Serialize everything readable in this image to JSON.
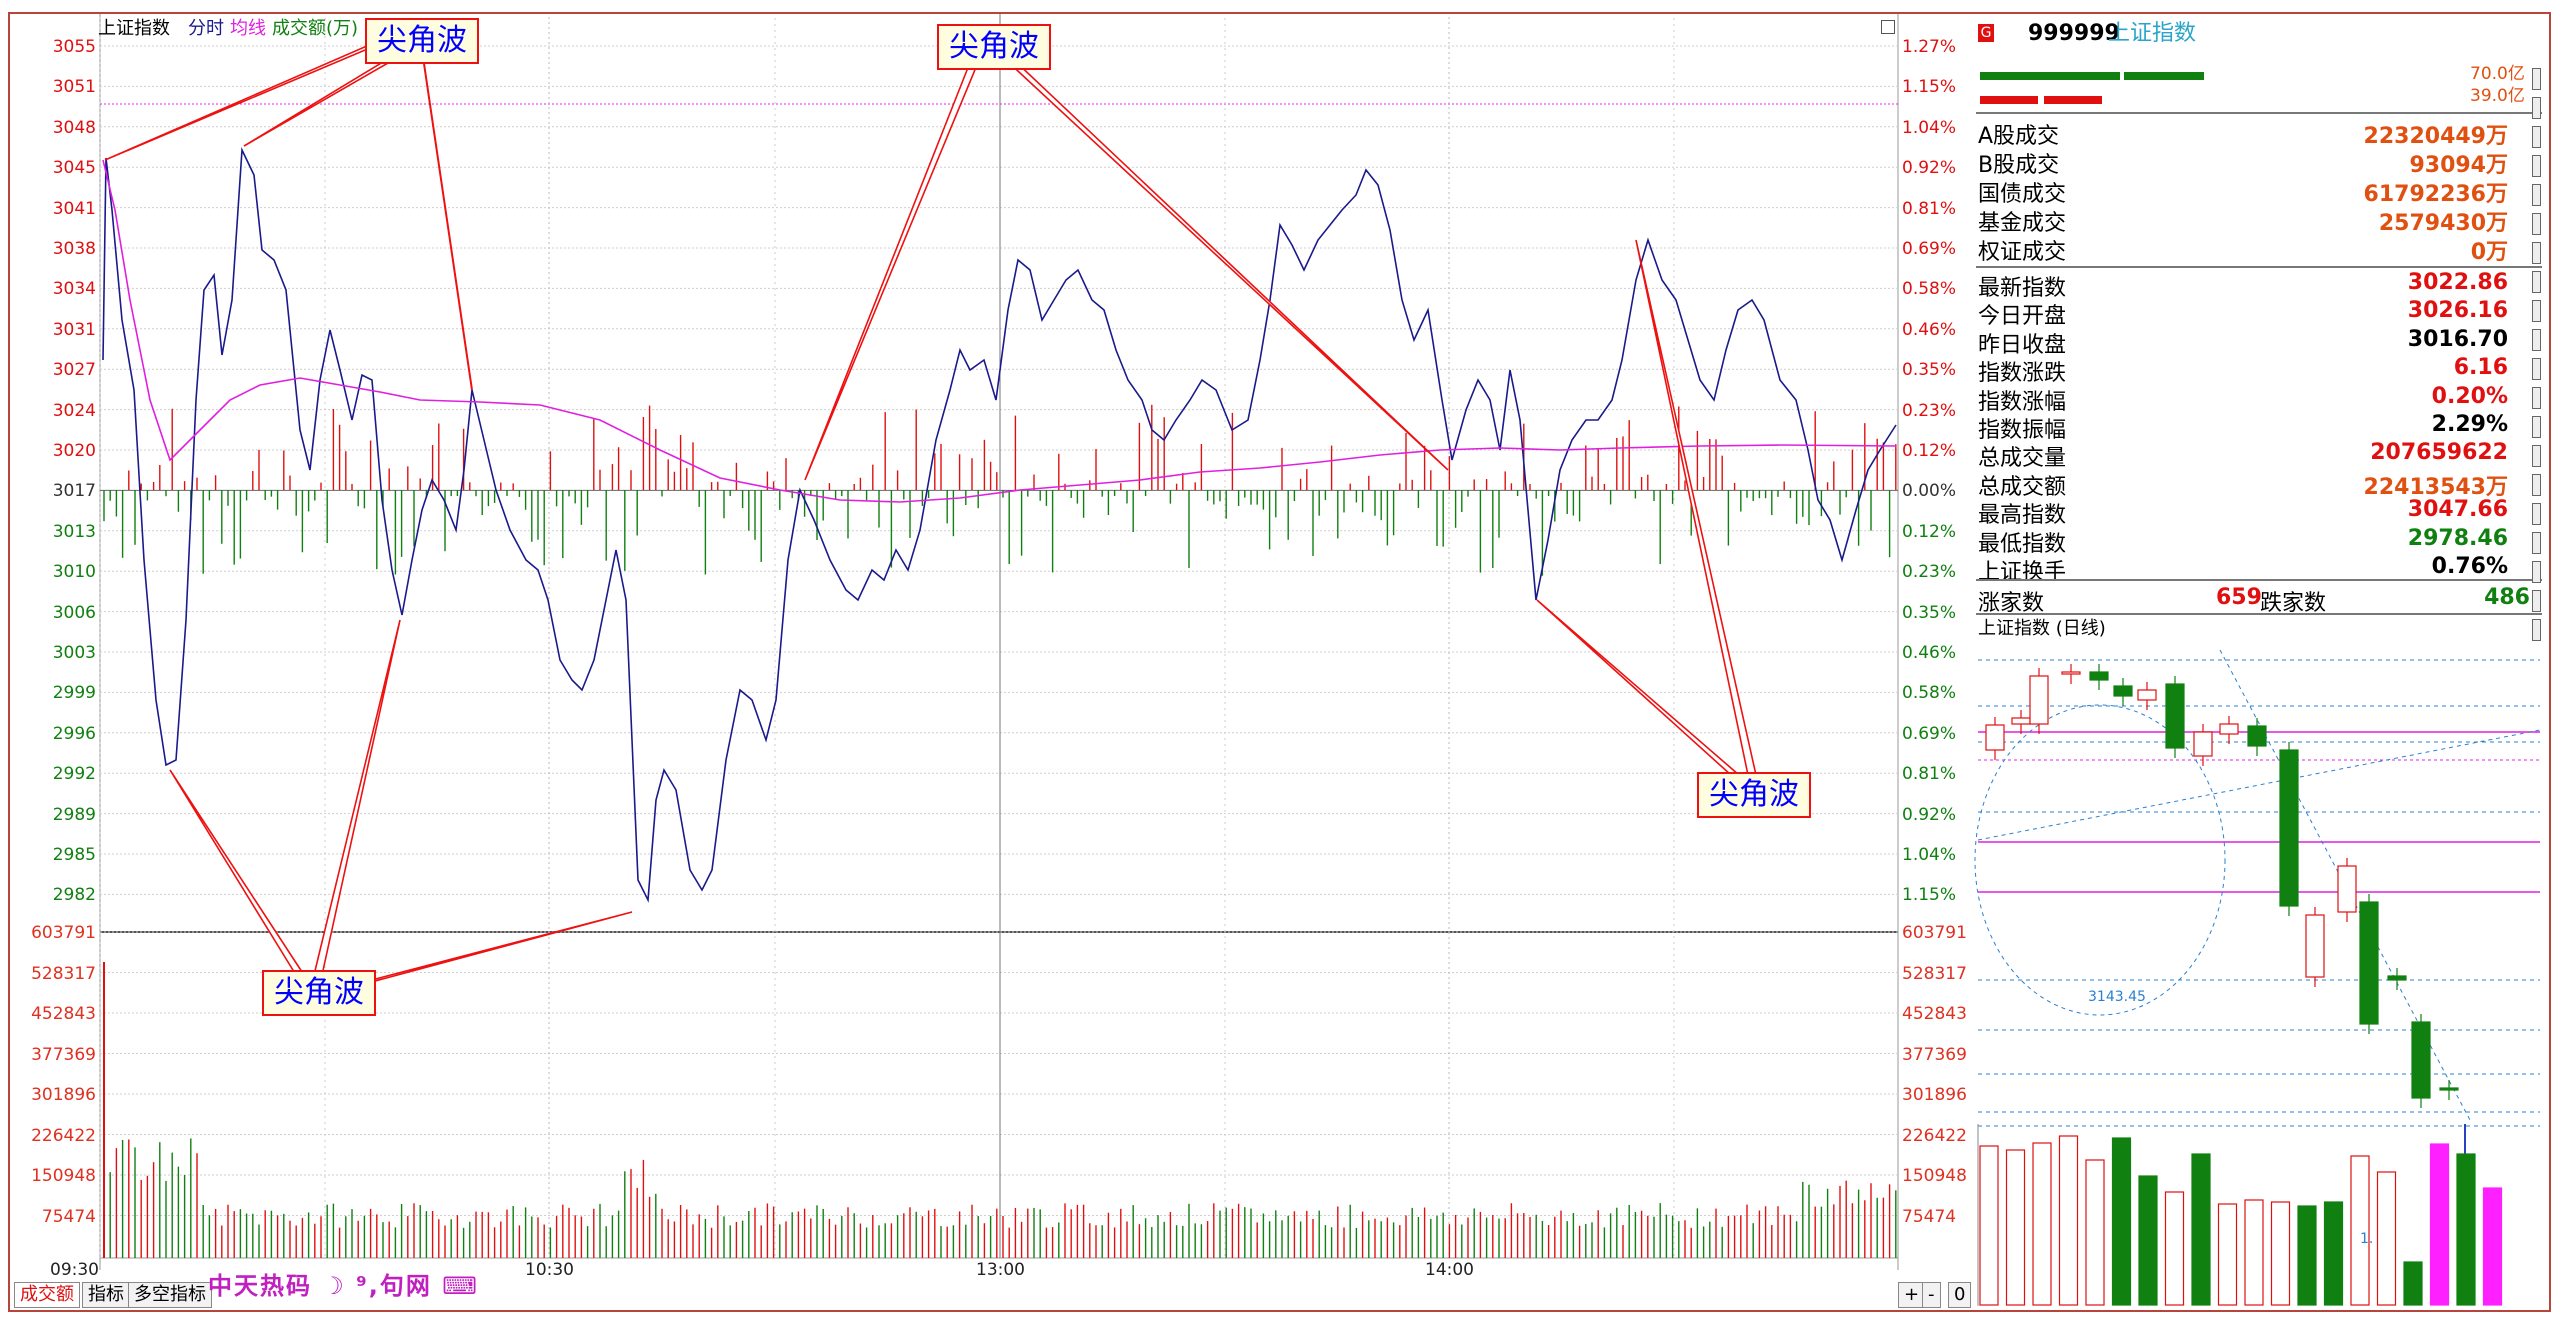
{
  "header": {
    "title": "上证指数",
    "tab_fenshi": "分时",
    "tab_junxian": "均线",
    "tab_volume": "成交额(万)"
  },
  "price_axis": {
    "left": [
      "3055",
      "3051",
      "3048",
      "3045",
      "3041",
      "3038",
      "3034",
      "3031",
      "3027",
      "3024",
      "3020",
      "3017",
      "3013",
      "3010",
      "3006",
      "3003",
      "2999",
      "2996",
      "2992",
      "2989",
      "2985",
      "2982"
    ],
    "right": [
      "1.27%",
      "1.15%",
      "1.04%",
      "0.92%",
      "0.81%",
      "0.69%",
      "0.58%",
      "0.46%",
      "0.35%",
      "0.23%",
      "0.12%",
      "0.00%",
      "0.12%",
      "0.23%",
      "0.35%",
      "0.46%",
      "0.58%",
      "0.69%",
      "0.81%",
      "0.92%",
      "1.04%",
      "1.15%"
    ]
  },
  "volume_axis": [
    "603791",
    "528317",
    "452843",
    "377369",
    "301896",
    "226422",
    "150948",
    "75474"
  ],
  "time_axis": [
    "09:30",
    "10:30",
    "13:00",
    "14:00"
  ],
  "callouts": [
    "尖角波",
    "尖角波",
    "尖角波",
    "尖角波"
  ],
  "bottom_tabs": [
    "成交额",
    "指标",
    "多空指标"
  ],
  "bottom_controls": [
    "+",
    "-",
    "0"
  ],
  "watermark": "中天热码 ☽ ⁹,句网 ⌨",
  "quote": {
    "badge": "G",
    "code": "999999",
    "name": "上证指数",
    "bar_top_value": "70.0亿",
    "bar_bottom_value": "39.0亿"
  },
  "turnover_rows": [
    {
      "k": "A股成交",
      "v": "22320449万"
    },
    {
      "k": "B股成交",
      "v": "93094万"
    },
    {
      "k": "国债成交",
      "v": "61792236万"
    },
    {
      "k": "基金成交",
      "v": "2579430万"
    },
    {
      "k": "权证成交",
      "v": "0万"
    }
  ],
  "index_rows": [
    {
      "k": "最新指数",
      "v": "3022.86",
      "c": "#e01010"
    },
    {
      "k": "今日开盘",
      "v": "3026.16",
      "c": "#e01010"
    },
    {
      "k": "昨日收盘",
      "v": "3016.70",
      "c": "#000000"
    },
    {
      "k": "指数涨跌",
      "v": "6.16",
      "c": "#e01010"
    },
    {
      "k": "指数涨幅",
      "v": "0.20%",
      "c": "#e01010"
    },
    {
      "k": "指数振幅",
      "v": "2.29%",
      "c": "#000000"
    },
    {
      "k": "总成交量",
      "v": "207659622",
      "c": "#e01010"
    },
    {
      "k": "总成交额",
      "v": "22413543万",
      "c": "#e05010"
    },
    {
      "k": "最高指数",
      "v": "3047.66",
      "c": "#e01010"
    },
    {
      "k": "最低指数",
      "v": "2978.46",
      "c": "#108010"
    },
    {
      "k": "上证换手",
      "v": "0.76%",
      "c": "#000000"
    }
  ],
  "breadth": {
    "up_label": "涨家数",
    "up_value": "659",
    "down_label": "跌家数",
    "down_value": "486"
  },
  "mini_chart": {
    "title": "上证指数 (日线)",
    "annotation": "3143.45",
    "small_label": "1."
  },
  "colors": {
    "up": "#e01010",
    "down": "#108010",
    "price_line": "#1a1a8c",
    "avg_line": "#e020e0",
    "frame": "#b8453c"
  }
}
